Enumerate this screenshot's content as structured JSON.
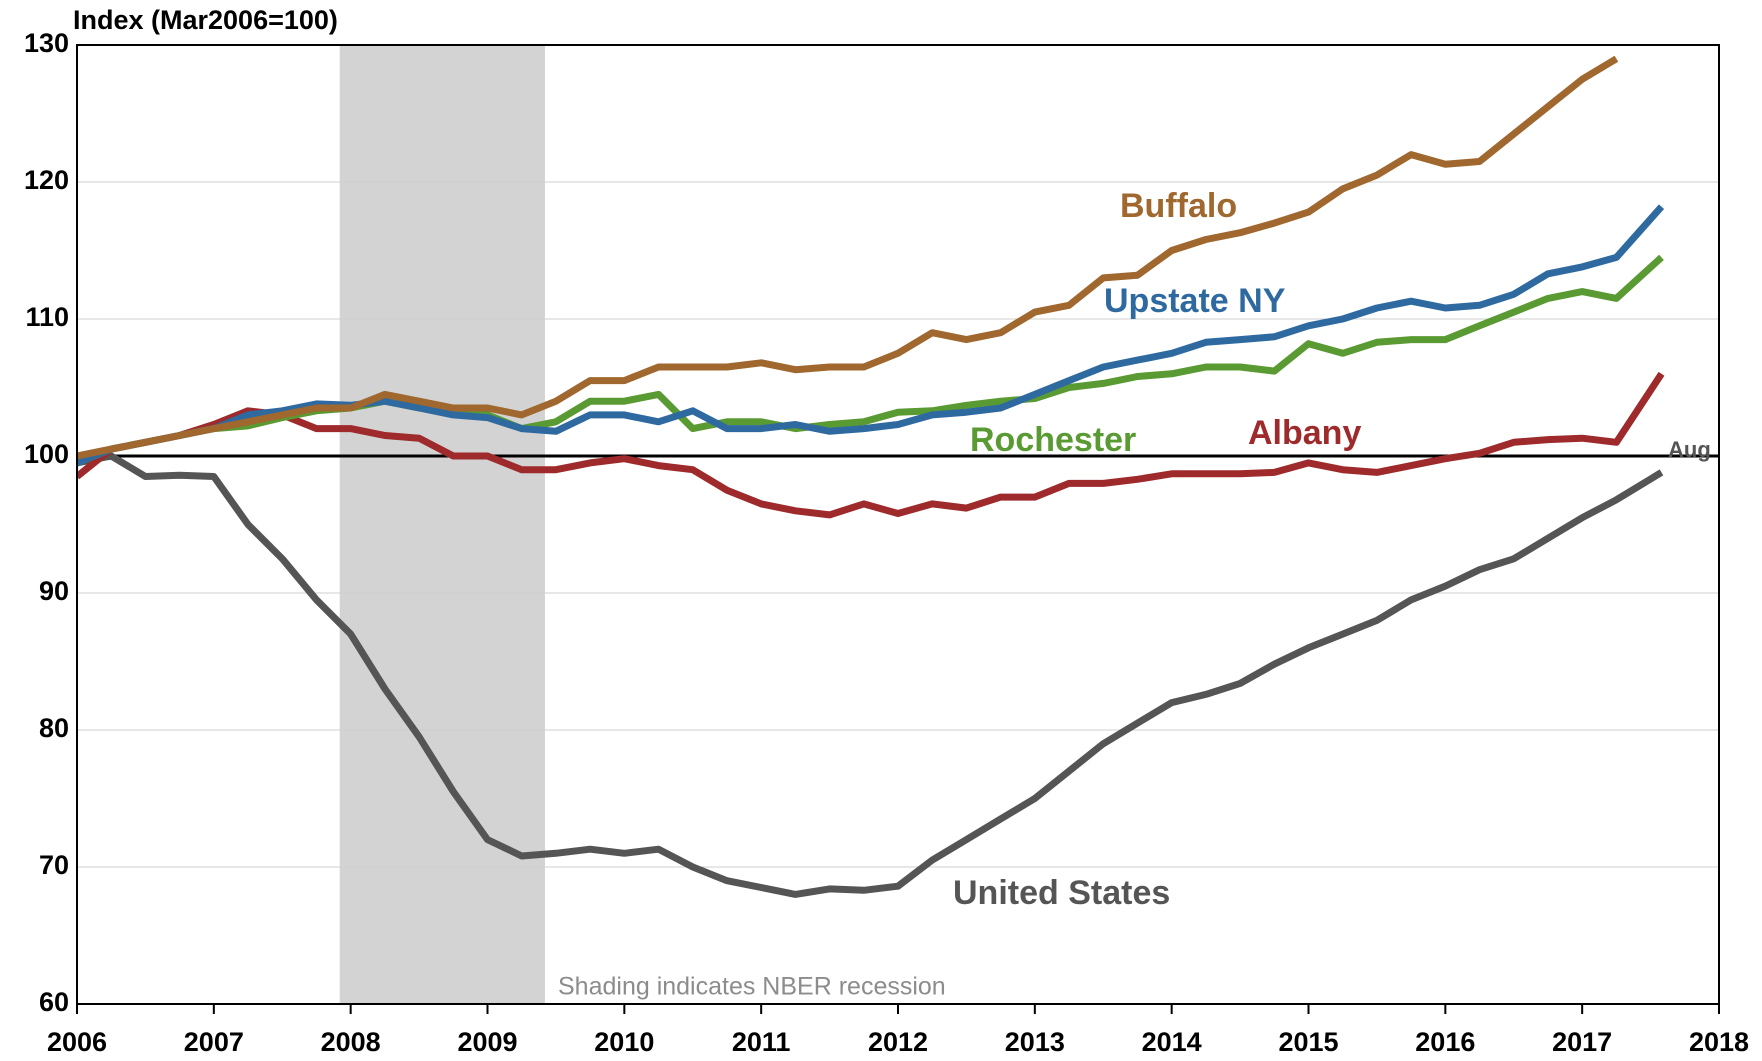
{
  "chart_data": {
    "type": "line",
    "y_axis_title": "Index (Mar2006=100)",
    "annotations": {
      "end_label": "Aug",
      "recession_note": "Shading indicates NBER recession"
    },
    "recession": [
      2007.92,
      2009.42
    ],
    "reference_line": 100,
    "x": [
      2006,
      2006.25,
      2006.5,
      2006.75,
      2007,
      2007.25,
      2007.5,
      2007.75,
      2008,
      2008.25,
      2008.5,
      2008.75,
      2009,
      2009.25,
      2009.5,
      2009.75,
      2010,
      2010.25,
      2010.5,
      2010.75,
      2011,
      2011.25,
      2011.5,
      2011.75,
      2012,
      2012.25,
      2012.5,
      2012.75,
      2013,
      2013.25,
      2013.5,
      2013.75,
      2014,
      2014.25,
      2014.5,
      2014.75,
      2015,
      2015.25,
      2015.5,
      2015.75,
      2016,
      2016.25,
      2016.5,
      2016.75,
      2017,
      2017.25,
      2017.58
    ],
    "series": [
      {
        "name": "Buffalo",
        "color": "#a0672e",
        "values": [
          100,
          100.5,
          101,
          101.5,
          102,
          102.5,
          103,
          103.5,
          103.5,
          104.5,
          104,
          103.5,
          103.5,
          103,
          104,
          105.5,
          105.5,
          106.5,
          106.5,
          106.5,
          106.8,
          106.3,
          106.5,
          106.5,
          107.5,
          109,
          108.5,
          109,
          110.5,
          111,
          113,
          113.2,
          115,
          115.8,
          116.3,
          117,
          117.8,
          119.5,
          120.5,
          122,
          121.3,
          121.5,
          123.5,
          125.5,
          127.5,
          129,
          null
        ]
      },
      {
        "name": "Upstate NY",
        "color": "#2e6aa0",
        "values": [
          99.5,
          100.5,
          101,
          101.5,
          102,
          103,
          103.3,
          103.8,
          103.7,
          104,
          103.5,
          103,
          102.8,
          102,
          101.8,
          103,
          103,
          102.5,
          103.3,
          102,
          102,
          102.3,
          101.8,
          102,
          102.3,
          103,
          103.2,
          103.5,
          104.5,
          105.5,
          106.5,
          107,
          107.5,
          108.3,
          108.5,
          108.7,
          109.5,
          110,
          110.8,
          111.3,
          110.8,
          111,
          111.8,
          113.3,
          113.8,
          114.5,
          118.2
        ]
      },
      {
        "name": "Rochester",
        "color": "#5a9a32",
        "values": [
          99.5,
          100.5,
          101,
          101.5,
          102,
          102.2,
          102.8,
          103.3,
          103.5,
          104,
          103.5,
          103.5,
          103,
          102,
          102.5,
          104,
          104,
          104.5,
          102,
          102.5,
          102.5,
          102,
          102.3,
          102.5,
          103.2,
          103.3,
          103.7,
          104,
          104.2,
          105,
          105.3,
          105.8,
          106,
          106.5,
          106.5,
          106.2,
          108.2,
          107.5,
          108.3,
          108.5,
          108.5,
          109.5,
          110.5,
          111.5,
          112,
          111.5,
          114.5
        ]
      },
      {
        "name": "Albany",
        "color": "#9e2a2b",
        "values": [
          98.5,
          100.5,
          101,
          101.5,
          102.3,
          103.3,
          103,
          102,
          102,
          101.5,
          101.3,
          100,
          100,
          99,
          99,
          99.5,
          99.8,
          99.3,
          99,
          97.5,
          96.5,
          96,
          95.7,
          96.5,
          95.8,
          96.5,
          96.2,
          97,
          97,
          98,
          98,
          98.3,
          98.7,
          98.7,
          98.7,
          98.8,
          99.5,
          99,
          98.8,
          99.3,
          99.8,
          100.2,
          101,
          101.2,
          101.3,
          101,
          106
        ]
      },
      {
        "name": "United States",
        "color": "#555555",
        "values": [
          99.5,
          100,
          98.5,
          98.6,
          98.5,
          95,
          92.5,
          89.5,
          87,
          83,
          79.5,
          75.5,
          72,
          70.8,
          71,
          71.3,
          71,
          71.3,
          70,
          69,
          68.5,
          68,
          68.4,
          68.3,
          68.6,
          70.5,
          72,
          73.5,
          75,
          77,
          79,
          80.5,
          82,
          82.6,
          83.4,
          84.8,
          86,
          87,
          88,
          89.5,
          90.5,
          91.7,
          92.5,
          94,
          95.5,
          96.8,
          98.8
        ]
      }
    ],
    "xlim": [
      2006,
      2018
    ],
    "xticks": [
      2006,
      2007,
      2008,
      2009,
      2010,
      2011,
      2012,
      2013,
      2014,
      2015,
      2016,
      2017,
      2018
    ],
    "ylim": [
      60,
      130
    ],
    "yticks": [
      60,
      70,
      80,
      90,
      100,
      110,
      120,
      130
    ],
    "grid": true
  }
}
